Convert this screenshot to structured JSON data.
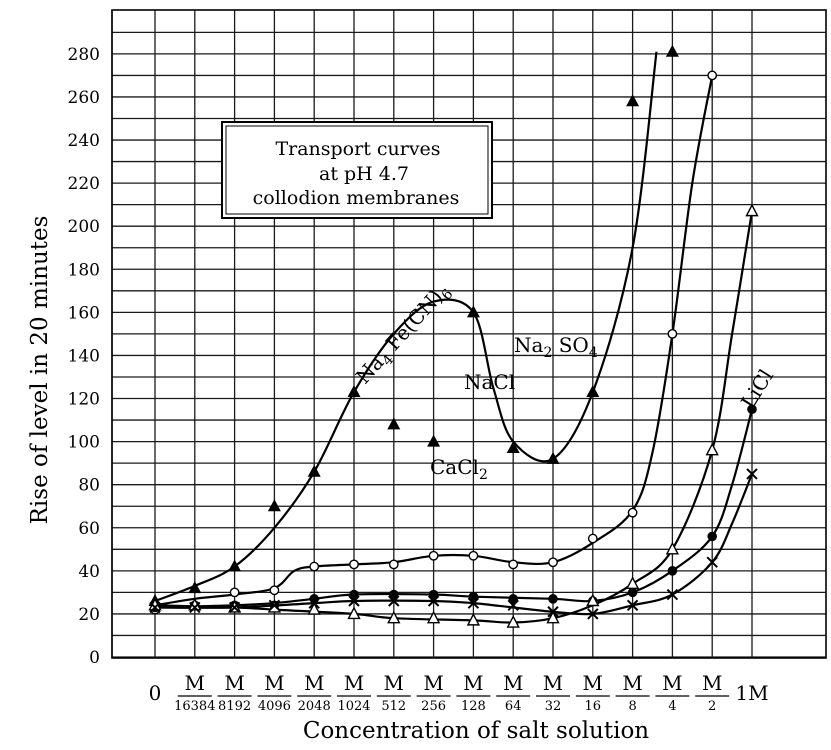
{
  "chart_data": {
    "type": "line",
    "title_box": [
      "Transport curves",
      "at pH 4.7",
      "collodion membranes"
    ],
    "xlabel": "Concentration of salt solution",
    "ylabel": "Rise of level in 20 minutes",
    "ylim": [
      0,
      290
    ],
    "yticks": [
      0,
      20,
      40,
      60,
      80,
      100,
      120,
      140,
      160,
      180,
      200,
      220,
      240,
      260,
      280
    ],
    "grid": true,
    "x_categories": [
      {
        "num": "0",
        "den": ""
      },
      {
        "num": "M",
        "den": "16384"
      },
      {
        "num": "M",
        "den": "8192"
      },
      {
        "num": "M",
        "den": "4096"
      },
      {
        "num": "M",
        "den": "2048"
      },
      {
        "num": "M",
        "den": "1024"
      },
      {
        "num": "M",
        "den": "512"
      },
      {
        "num": "M",
        "den": "256"
      },
      {
        "num": "M",
        "den": "128"
      },
      {
        "num": "M",
        "den": "64"
      },
      {
        "num": "M",
        "den": "32"
      },
      {
        "num": "M",
        "den": "16"
      },
      {
        "num": "M",
        "den": "8"
      },
      {
        "num": "M",
        "den": "4"
      },
      {
        "num": "M",
        "den": "2"
      },
      {
        "num": "1M",
        "den": ""
      }
    ],
    "series": [
      {
        "name": "Na4 Fe(CN)6",
        "label_parts": [
          "Na",
          "4",
          " Fe",
          "(CN)",
          "6"
        ],
        "marker": "triangle-filled",
        "points": [
          [
            0,
            26
          ],
          [
            1,
            32
          ],
          [
            2,
            42
          ],
          [
            3,
            70
          ],
          [
            4,
            86
          ],
          [
            5,
            123
          ],
          [
            6,
            108
          ],
          [
            7,
            100
          ],
          [
            8,
            160
          ],
          [
            9,
            97
          ],
          [
            10,
            92
          ],
          [
            11,
            123
          ],
          [
            12,
            258
          ],
          [
            13,
            281
          ]
        ],
        "curve": [
          [
            0,
            26
          ],
          [
            1,
            33
          ],
          [
            2,
            42
          ],
          [
            3,
            60
          ],
          [
            4,
            86
          ],
          [
            5,
            123
          ],
          [
            6,
            150
          ],
          [
            7,
            165
          ],
          [
            8,
            160
          ],
          [
            8.5,
            125
          ],
          [
            9,
            100
          ],
          [
            10,
            92
          ],
          [
            11,
            123
          ],
          [
            12,
            190
          ],
          [
            12.6,
            281
          ]
        ]
      },
      {
        "name": "Na2 SO4",
        "label_parts": [
          "Na",
          "2",
          " SO",
          "4",
          ""
        ],
        "marker": "circle-open",
        "points": [
          [
            0,
            22
          ],
          [
            2,
            30
          ],
          [
            3,
            31
          ],
          [
            4,
            42
          ],
          [
            5,
            43
          ],
          [
            6,
            43
          ],
          [
            7,
            47
          ],
          [
            8,
            47
          ],
          [
            9,
            43
          ],
          [
            10,
            44
          ],
          [
            11,
            55
          ],
          [
            12,
            67
          ],
          [
            13,
            150
          ],
          [
            14,
            270
          ]
        ],
        "curve": [
          [
            0,
            24
          ],
          [
            1,
            27
          ],
          [
            2,
            29
          ],
          [
            3,
            32
          ],
          [
            3.5,
            40
          ],
          [
            4,
            42
          ],
          [
            5,
            43
          ],
          [
            6,
            44
          ],
          [
            7,
            47
          ],
          [
            8,
            47
          ],
          [
            9,
            44
          ],
          [
            10,
            44
          ],
          [
            11,
            53
          ],
          [
            12,
            68
          ],
          [
            12.5,
            95
          ],
          [
            13,
            150
          ],
          [
            13.5,
            220
          ],
          [
            14,
            270
          ]
        ]
      },
      {
        "name": "NaCl",
        "label_parts": [
          "NaCl",
          "",
          "",
          "",
          ""
        ],
        "marker": "circle-filled",
        "points": [
          [
            0,
            23
          ],
          [
            1,
            24
          ],
          [
            2,
            24
          ],
          [
            3,
            24
          ],
          [
            4,
            27
          ],
          [
            5,
            29
          ],
          [
            6,
            29
          ],
          [
            7,
            29
          ],
          [
            8,
            28
          ],
          [
            9,
            27
          ],
          [
            10,
            27
          ],
          [
            11,
            26
          ],
          [
            12,
            30
          ],
          [
            13,
            40
          ],
          [
            14,
            56
          ],
          [
            15,
            115
          ]
        ],
        "curve": [
          [
            0,
            23
          ],
          [
            2,
            24
          ],
          [
            3,
            25
          ],
          [
            4,
            27
          ],
          [
            5,
            29
          ],
          [
            7,
            29
          ],
          [
            8,
            28
          ],
          [
            10,
            27
          ],
          [
            11,
            26
          ],
          [
            12,
            30
          ],
          [
            13,
            40
          ],
          [
            14,
            56
          ],
          [
            14.5,
            80
          ],
          [
            15,
            115
          ]
        ]
      },
      {
        "name": "CaCl2",
        "label_parts": [
          "CaCl",
          "2",
          "",
          "",
          ""
        ],
        "marker": "triangle-open",
        "points": [
          [
            0,
            24
          ],
          [
            1,
            24
          ],
          [
            2,
            23
          ],
          [
            3,
            23
          ],
          [
            4,
            22
          ],
          [
            5,
            20
          ],
          [
            6,
            18
          ],
          [
            7,
            18
          ],
          [
            8,
            17
          ],
          [
            9,
            16
          ],
          [
            10,
            18
          ],
          [
            11,
            26
          ],
          [
            12,
            34
          ],
          [
            13,
            50
          ],
          [
            14,
            96
          ],
          [
            15,
            207
          ]
        ],
        "curve": [
          [
            0,
            24
          ],
          [
            2,
            23
          ],
          [
            3,
            22
          ],
          [
            5,
            20
          ],
          [
            6,
            18
          ],
          [
            8,
            17
          ],
          [
            9,
            16
          ],
          [
            10,
            18
          ],
          [
            11,
            24
          ],
          [
            12,
            34
          ],
          [
            13,
            50
          ],
          [
            14,
            96
          ],
          [
            14.5,
            150
          ],
          [
            15,
            207
          ]
        ]
      },
      {
        "name": "LiCl",
        "label_parts": [
          "LiCl",
          "",
          "",
          "",
          ""
        ],
        "marker": "cross",
        "points": [
          [
            0,
            23
          ],
          [
            1,
            23
          ],
          [
            2,
            23
          ],
          [
            3,
            24
          ],
          [
            4,
            25
          ],
          [
            5,
            26
          ],
          [
            6,
            26
          ],
          [
            7,
            26
          ],
          [
            8,
            25
          ],
          [
            9,
            24
          ],
          [
            10,
            21
          ],
          [
            11,
            20
          ],
          [
            12,
            24
          ],
          [
            13,
            29
          ],
          [
            14,
            44
          ],
          [
            15,
            85
          ]
        ],
        "curve": [
          [
            0,
            23
          ],
          [
            2,
            23
          ],
          [
            4,
            25
          ],
          [
            5,
            26
          ],
          [
            7,
            26
          ],
          [
            8,
            25
          ],
          [
            9,
            23
          ],
          [
            10,
            21
          ],
          [
            11,
            20
          ],
          [
            12,
            24
          ],
          [
            13,
            29
          ],
          [
            14,
            44
          ],
          [
            14.5,
            62
          ],
          [
            15,
            85
          ]
        ]
      }
    ]
  }
}
